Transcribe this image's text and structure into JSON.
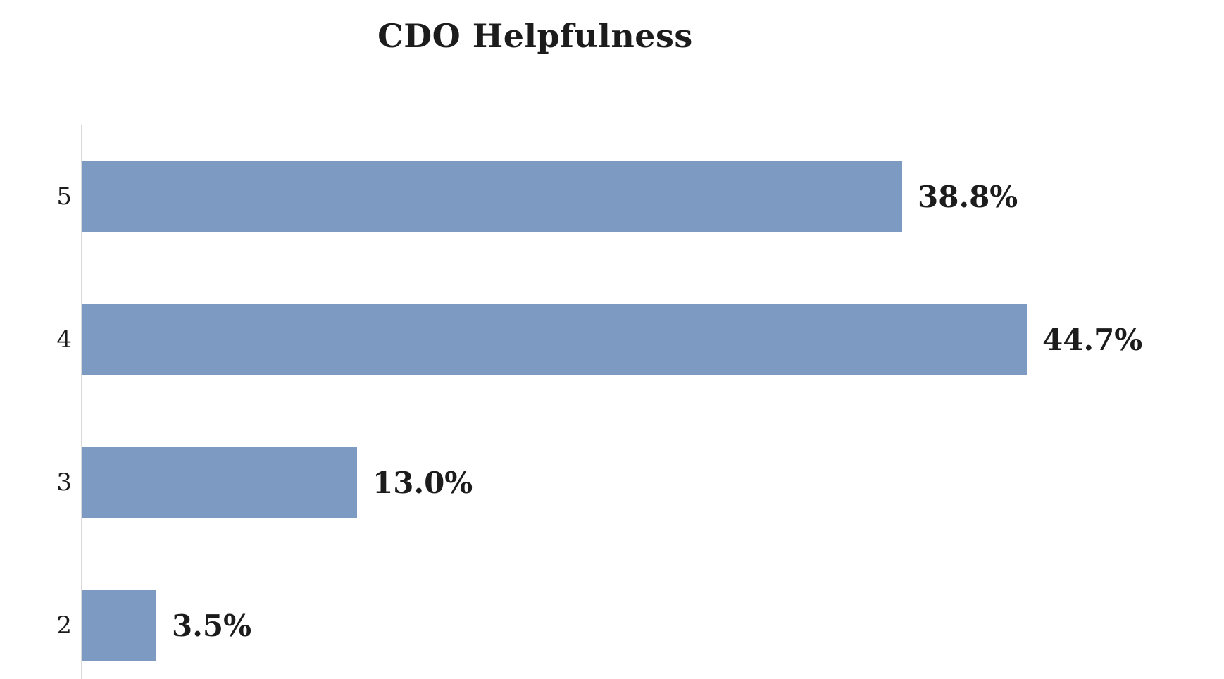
{
  "page": {
    "background": "#FFFFFF"
  },
  "chart_data": {
    "type": "bar",
    "orientation": "horizontal",
    "title": "CDO Helpfulness",
    "categories": [
      "5",
      "4",
      "3",
      "2"
    ],
    "values": [
      38.8,
      44.7,
      13.0,
      3.5
    ],
    "value_labels": [
      "38.8%",
      "44.7%",
      "13.0%",
      "3.5%"
    ],
    "xlabel": "",
    "ylabel": "",
    "xlim": [
      0,
      50
    ],
    "grid": false,
    "legend": false,
    "bars_start_at_axis": true,
    "colors": {
      "bar": "#7C9AC2",
      "axis_line": "#D9D9D9",
      "text": "#1C1C1C"
    }
  }
}
